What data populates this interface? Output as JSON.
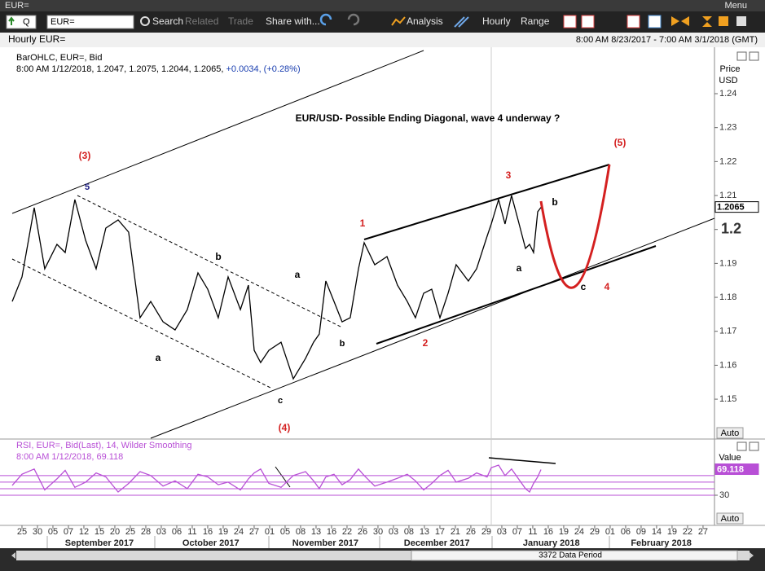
{
  "window": {
    "title": "EUR=",
    "menu": "Menu"
  },
  "toolbar": {
    "ric_type": "Q",
    "ric": "EUR=",
    "buttons": [
      "Search",
      "Related",
      "Trade",
      "Share with...",
      "Analysis",
      "Hourly",
      "Range"
    ]
  },
  "header": {
    "title": "Hourly EUR=",
    "range": "8:00 AM 8/23/2017 - 7:00 AM 3/1/2018 (GMT)"
  },
  "chart_data": [
    {
      "type": "line",
      "title": "EUR/USD- Possible Ending Diagonal, wave 4 underway ?",
      "legend_detail": "8:00 AM 1/12/2018, 1.2047, 1.2075, 1.2044, 1.2065,",
      "change": "+0.0034, (+0.28%)",
      "axis_label": [
        "Price",
        "USD"
      ],
      "scale_button": "Auto",
      "x": [
        -0.63,
        0,
        0.79,
        1.47,
        2.26,
        2.79,
        3.42,
        4.11,
        4.79,
        5.42,
        6.21,
        6.89,
        7.63,
        8.32,
        9.11,
        9.89,
        10.68,
        11.37,
        12,
        12.68,
        13.32,
        14.11,
        14.63,
        15,
        15.42,
        15.95,
        16.74,
        17.53,
        18.32,
        18.84,
        19.21,
        19.63,
        20.16,
        20.68,
        21.21,
        21.74,
        22.11,
        22.79,
        23.58,
        24.26,
        24.89,
        25.42,
        25.95,
        26.47,
        27,
        27.53,
        28.05,
        28.84,
        29.37,
        30.05,
        30.32,
        30.79,
        31.21,
        31.63,
        32.05,
        32.53,
        32.79,
        33.05,
        33.32,
        33.53
      ],
      "series": [
        {
          "name": "BarOHLC, EUR=, Bid",
          "color": "#000000",
          "values": [
            1.1788,
            1.186,
            1.2064,
            1.1884,
            1.1956,
            1.1932,
            1.2088,
            1.1968,
            1.1884,
            1.2004,
            1.2028,
            1.1992,
            1.174,
            1.1788,
            1.1728,
            1.1704,
            1.1764,
            1.1872,
            1.1824,
            1.174,
            1.186,
            1.1764,
            1.1836,
            1.1644,
            1.1608,
            1.1644,
            1.1668,
            1.156,
            1.162,
            1.1668,
            1.1692,
            1.1848,
            1.1788,
            1.1728,
            1.174,
            1.1884,
            1.1961,
            1.1896,
            1.192,
            1.1836,
            1.1788,
            1.174,
            1.1812,
            1.1824,
            1.174,
            1.1812,
            1.1896,
            1.1848,
            1.1884,
            1.198,
            1.2016,
            1.2088,
            1.2016,
            1.21,
            1.2028,
            1.1944,
            1.1956,
            1.1932,
            1.2052,
            1.2065
          ]
        }
      ],
      "xlim": [
        -0.63,
        44.74
      ],
      "xticks": [
        {
          "value": 0,
          "label": "25"
        },
        {
          "value": 1,
          "label": "30"
        },
        {
          "value": 2,
          "label": "05"
        },
        {
          "value": 3,
          "label": "07"
        },
        {
          "value": 4,
          "label": "12"
        },
        {
          "value": 5,
          "label": "15"
        },
        {
          "value": 6,
          "label": "20"
        },
        {
          "value": 7,
          "label": "25"
        },
        {
          "value": 8,
          "label": "28"
        },
        {
          "value": 9,
          "label": "03"
        },
        {
          "value": 10,
          "label": "06"
        },
        {
          "value": 11,
          "label": "11"
        },
        {
          "value": 12,
          "label": "16"
        },
        {
          "value": 13,
          "label": "19"
        },
        {
          "value": 14,
          "label": "24"
        },
        {
          "value": 15,
          "label": "27"
        },
        {
          "value": 16,
          "label": "01"
        },
        {
          "value": 17,
          "label": "05"
        },
        {
          "value": 18,
          "label": "08"
        },
        {
          "value": 19,
          "label": "13"
        },
        {
          "value": 20,
          "label": "16"
        },
        {
          "value": 21,
          "label": "22"
        },
        {
          "value": 22,
          "label": "26"
        },
        {
          "value": 23,
          "label": "30"
        },
        {
          "value": 24,
          "label": "03"
        },
        {
          "value": 25,
          "label": "08"
        },
        {
          "value": 26,
          "label": "13"
        },
        {
          "value": 27,
          "label": "17"
        },
        {
          "value": 28,
          "label": "21"
        },
        {
          "value": 29,
          "label": "26"
        },
        {
          "value": 30,
          "label": "29"
        },
        {
          "value": 31,
          "label": "03"
        },
        {
          "value": 32,
          "label": "07"
        },
        {
          "value": 33,
          "label": "11"
        },
        {
          "value": 34,
          "label": "16"
        },
        {
          "value": 35,
          "label": "19"
        },
        {
          "value": 36,
          "label": "24"
        },
        {
          "value": 37,
          "label": "29"
        },
        {
          "value": 38,
          "label": "01"
        },
        {
          "value": 39,
          "label": "06"
        },
        {
          "value": 40,
          "label": "09"
        },
        {
          "value": 41,
          "label": "14"
        },
        {
          "value": 42,
          "label": "19"
        },
        {
          "value": 43,
          "label": "22"
        },
        {
          "value": 44,
          "label": "27"
        }
      ],
      "month_ticks": [
        {
          "value": 5,
          "label": "September 2017"
        },
        {
          "value": 12.2,
          "label": "October 2017"
        },
        {
          "value": 19.6,
          "label": "November 2017"
        },
        {
          "value": 26.8,
          "label": "December 2017"
        },
        {
          "value": 34.2,
          "label": "January 2018"
        },
        {
          "value": 41.3,
          "label": "February 2018"
        }
      ],
      "ylim": [
        1.1385,
        1.2532
      ],
      "yticks": [
        1.24,
        1.23,
        1.22,
        1.21,
        1.2,
        1.19,
        1.18,
        1.17,
        1.16,
        1.15
      ],
      "annotations": [
        "(3)",
        "5",
        "b",
        "a",
        "a",
        "b",
        "c",
        "(4)",
        "1",
        "2",
        "3",
        "(5)",
        "b",
        "a",
        "c",
        "4"
      ]
    },
    {
      "type": "line",
      "legend_detail": "8:00 AM 1/12/2018, 69.118",
      "axis_label": "Value",
      "scale_button": "Auto",
      "x": [
        -0.63,
        0,
        0.79,
        1.47,
        2.26,
        2.79,
        3.42,
        4.11,
        4.79,
        5.42,
        6.21,
        6.89,
        7.63,
        8.32,
        9.11,
        9.89,
        10.68,
        11.37,
        12,
        12.68,
        13.32,
        14.11,
        14.63,
        15,
        15.42,
        15.95,
        16.74,
        17.53,
        18.32,
        18.84,
        19.21,
        19.63,
        20.16,
        20.68,
        21.21,
        21.74,
        22.11,
        22.79,
        23.58,
        24.26,
        24.89,
        25.42,
        25.95,
        26.47,
        27,
        27.53,
        28.05,
        28.84,
        29.37,
        30.05,
        30.32,
        30.79,
        31.21,
        31.63,
        32.05,
        32.53,
        32.79,
        33.05,
        33.32,
        33.53
      ],
      "series": [
        {
          "name": "RSI, EUR=, Bid(Last),  14, Wilder Smoothing",
          "color": "#b84fd6",
          "values": [
            45,
            62,
            70,
            38,
            55,
            68,
            42,
            50,
            64,
            58,
            35,
            48,
            66,
            60,
            44,
            52,
            40,
            62,
            58,
            46,
            50,
            38,
            55,
            64,
            70,
            48,
            42,
            60,
            66,
            52,
            40,
            58,
            62,
            46,
            54,
            70,
            60,
            44,
            50,
            56,
            62,
            52,
            38,
            48,
            60,
            68,
            50,
            56,
            64,
            58,
            72,
            76,
            60,
            70,
            56,
            40,
            35,
            48,
            58,
            69.118
          ]
        }
      ],
      "xlim": [
        -0.63,
        44.74
      ],
      "ylim": [
        -16,
        112
      ],
      "yticks": [
        30
      ],
      "levels": [
        30,
        40,
        50,
        60
      ],
      "level_color": "#b84fd6"
    }
  ],
  "footer": {
    "data_period": "3372 Data Period"
  }
}
